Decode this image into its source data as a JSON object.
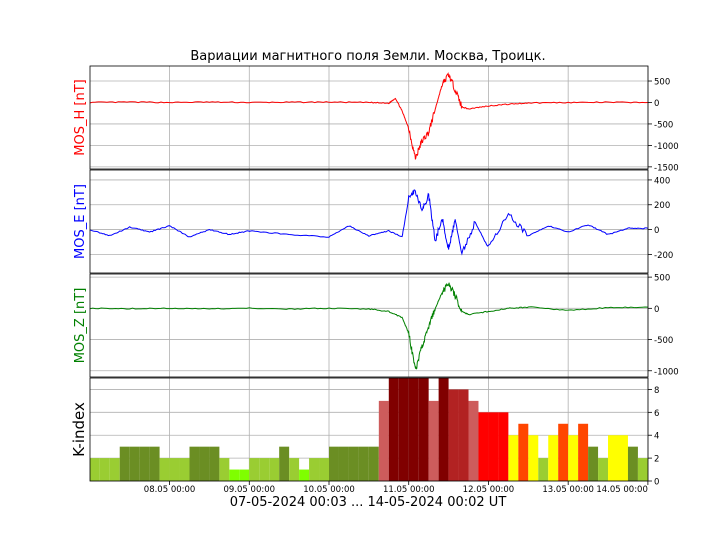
{
  "title": "Вариации магнитного поля Земли. Москва, Троицк.",
  "footer": "07-05-2024 00:03 ... 14-05-2024 00:02 UT",
  "x_ticks": [
    "08.05 00:00",
    "09.05 00:00",
    "10.05 00:00",
    "11.05 00:00",
    "12.05 00:00",
    "13.05 00:00",
    "14.05 00:00"
  ],
  "colors": {
    "h": "#ff0000",
    "e": "#0000ff",
    "z": "#008000"
  },
  "chart_data": [
    {
      "type": "line",
      "ylabel": "MOS_H [nT]",
      "ylim": [
        -1550,
        850
      ],
      "yticks": [
        500,
        0,
        -500,
        -1000,
        -1500
      ],
      "x": [
        "07.05 00:00",
        "07.05 12:00",
        "08.05 00:00",
        "08.05 12:00",
        "09.05 00:00",
        "09.05 12:00",
        "10.05 00:00",
        "10.05 12:00",
        "10.05 18:00",
        "10.05 20:00",
        "10.05 22:00",
        "11.05 00:00",
        "11.05 02:00",
        "11.05 04:00",
        "11.05 06:00",
        "11.05 08:00",
        "11.05 10:00",
        "11.05 12:00",
        "11.05 14:00",
        "11.05 16:00",
        "11.05 18:00",
        "12.05 00:00",
        "12.05 06:00",
        "12.05 12:00",
        "13.05 00:00",
        "13.05 12:00",
        "14.05 00:00"
      ],
      "series": [
        {
          "values": [
            0,
            10,
            0,
            10,
            0,
            5,
            10,
            0,
            -20,
            100,
            -200,
            -600,
            -1300,
            -900,
            -700,
            -150,
            400,
            650,
            300,
            -100,
            -150,
            -80,
            -40,
            -10,
            0,
            5,
            0
          ]
        }
      ]
    },
    {
      "type": "line",
      "ylabel": "MOS_E [nT]",
      "ylim": [
        -350,
        480
      ],
      "yticks": [
        400,
        200,
        0,
        -200
      ],
      "x": [
        "07.05 00:00",
        "07.05 06:00",
        "07.05 12:00",
        "07.05 18:00",
        "08.05 00:00",
        "08.05 06:00",
        "08.05 12:00",
        "08.05 18:00",
        "09.05 00:00",
        "09.05 12:00",
        "10.05 00:00",
        "10.05 06:00",
        "10.05 12:00",
        "10.05 18:00",
        "10.05 22:00",
        "11.05 00:00",
        "11.05 02:00",
        "11.05 04:00",
        "11.05 06:00",
        "11.05 08:00",
        "11.05 10:00",
        "11.05 12:00",
        "11.05 14:00",
        "11.05 16:00",
        "11.05 20:00",
        "12.05 00:00",
        "12.05 06:00",
        "12.05 12:00",
        "12.05 18:00",
        "13.05 00:00",
        "13.05 06:00",
        "13.05 12:00",
        "13.05 18:00",
        "14.05 00:00"
      ],
      "series": [
        {
          "values": [
            0,
            -50,
            20,
            -20,
            30,
            -60,
            0,
            -40,
            -10,
            -40,
            -60,
            30,
            -50,
            -10,
            -60,
            250,
            320,
            150,
            280,
            -100,
            100,
            -150,
            80,
            -200,
            60,
            -150,
            120,
            -50,
            30,
            -20,
            40,
            -40,
            10,
            10
          ]
        }
      ]
    },
    {
      "type": "line",
      "ylabel": "MOS_Z [nT]",
      "ylim": [
        -1100,
        550
      ],
      "yticks": [
        500,
        0,
        -500,
        -1000
      ],
      "x": [
        "07.05 00:00",
        "07.05 12:00",
        "08.05 00:00",
        "08.05 12:00",
        "09.05 00:00",
        "09.05 12:00",
        "10.05 00:00",
        "10.05 12:00",
        "10.05 18:00",
        "10.05 22:00",
        "11.05 00:00",
        "11.05 02:00",
        "11.05 04:00",
        "11.05 06:00",
        "11.05 08:00",
        "11.05 10:00",
        "11.05 12:00",
        "11.05 14:00",
        "11.05 16:00",
        "11.05 18:00",
        "12.05 00:00",
        "12.05 06:00",
        "12.05 12:00",
        "13.05 00:00",
        "13.05 12:00",
        "14.05 00:00"
      ],
      "series": [
        {
          "values": [
            0,
            -5,
            0,
            -10,
            0,
            -10,
            0,
            -10,
            -50,
            -150,
            -400,
            -1000,
            -600,
            -300,
            0,
            250,
            400,
            200,
            -50,
            -100,
            -50,
            0,
            20,
            -30,
            10,
            20
          ]
        }
      ]
    },
    {
      "type": "bar",
      "ylabel": "K-index",
      "ylim": [
        0,
        9
      ],
      "yticks": [
        0,
        2,
        4,
        6,
        8
      ],
      "categories": [
        "07.05 00:00",
        "07.05 03:00",
        "07.05 06:00",
        "07.05 09:00",
        "07.05 12:00",
        "07.05 15:00",
        "07.05 18:00",
        "07.05 21:00",
        "08.05 00:00",
        "08.05 03:00",
        "08.05 06:00",
        "08.05 09:00",
        "08.05 12:00",
        "08.05 15:00",
        "08.05 18:00",
        "08.05 21:00",
        "09.05 00:00",
        "09.05 03:00",
        "09.05 06:00",
        "09.05 09:00",
        "09.05 12:00",
        "09.05 15:00",
        "09.05 18:00",
        "09.05 21:00",
        "10.05 00:00",
        "10.05 03:00",
        "10.05 06:00",
        "10.05 09:00",
        "10.05 12:00",
        "10.05 15:00",
        "10.05 18:00",
        "10.05 21:00",
        "11.05 00:00",
        "11.05 03:00",
        "11.05 06:00",
        "11.05 09:00",
        "11.05 12:00",
        "11.05 15:00",
        "11.05 18:00",
        "11.05 21:00",
        "12.05 00:00",
        "12.05 03:00",
        "12.05 06:00",
        "12.05 09:00",
        "12.05 12:00",
        "12.05 15:00",
        "12.05 18:00",
        "12.05 21:00",
        "13.05 00:00",
        "13.05 03:00",
        "13.05 06:00",
        "13.05 09:00",
        "13.05 12:00",
        "13.05 15:00",
        "13.05 18:00",
        "13.05 21:00"
      ],
      "values": [
        2,
        2,
        2,
        3,
        3,
        3,
        3,
        2,
        2,
        2,
        3,
        3,
        3,
        2,
        1,
        1,
        2,
        2,
        2,
        3,
        2,
        1,
        2,
        2,
        3,
        3,
        3,
        3,
        3,
        7,
        9,
        9,
        9,
        9,
        7,
        9,
        8,
        8,
        7,
        6,
        6,
        6,
        4,
        5,
        4,
        2,
        4,
        5,
        4,
        5,
        3,
        2,
        4,
        4,
        3,
        2
      ],
      "colors": [
        "#9acd32",
        "#9acd32",
        "#9acd32",
        "#6b8e23",
        "#6b8e23",
        "#6b8e23",
        "#6b8e23",
        "#9acd32",
        "#9acd32",
        "#9acd32",
        "#6b8e23",
        "#6b8e23",
        "#6b8e23",
        "#9acd32",
        "#7fff00",
        "#7fff00",
        "#9acd32",
        "#9acd32",
        "#9acd32",
        "#6b8e23",
        "#9acd32",
        "#7fff00",
        "#9acd32",
        "#9acd32",
        "#6b8e23",
        "#6b8e23",
        "#6b8e23",
        "#6b8e23",
        "#6b8e23",
        "#cd5c5c",
        "#800000",
        "#800000",
        "#800000",
        "#800000",
        "#cd5c5c",
        "#800000",
        "#b22222",
        "#b22222",
        "#cd5c5c",
        "#ff0000",
        "#ff0000",
        "#ff0000",
        "#ffff00",
        "#ff4500",
        "#ffff00",
        "#9acd32",
        "#ffff00",
        "#ff4500",
        "#ffff00",
        "#ff4500",
        "#6b8e23",
        "#9acd32",
        "#ffff00",
        "#ffff00",
        "#6b8e23",
        "#9acd32"
      ]
    }
  ]
}
